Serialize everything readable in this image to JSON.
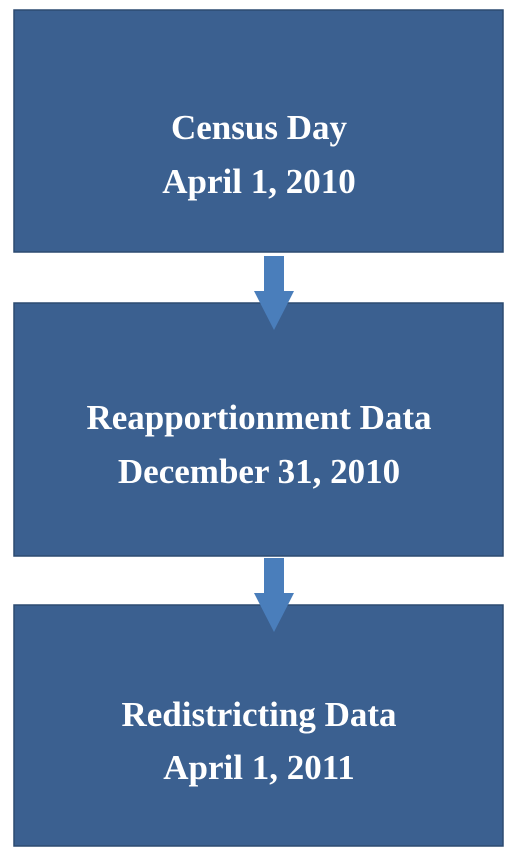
{
  "nodes": [
    {
      "lines": [
        "Census Day",
        "April 1, 2010"
      ]
    },
    {
      "lines": [
        "Reapportionment Data",
        "December 31, 2010"
      ]
    },
    {
      "lines": [
        "Redistricting Data",
        "April 1, 2011"
      ]
    }
  ]
}
